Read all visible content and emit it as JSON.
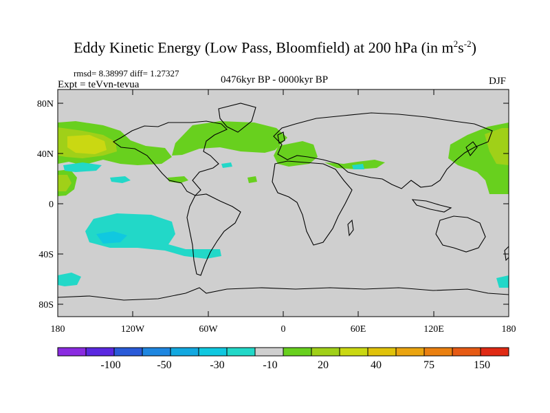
{
  "title": {
    "main": "Eddy Kinetic Energy (Low Pass, Bloomfield) at 200 hPa (in m",
    "sup1": "2",
    "mid": "s",
    "sup2": "-2",
    "end": ")"
  },
  "stats": "rmsd= 8.38997 diff= 1.27327",
  "experiment": "Expt = teVvn-tevua",
  "period": "0476kyr BP - 0000kyr BP",
  "season": "DJF",
  "axes": {
    "lat_ticks": [
      "80N",
      "40N",
      "0",
      "40S",
      "80S"
    ],
    "lon_ticks": [
      "180",
      "120W",
      "60W",
      "0",
      "60E",
      "120E",
      "180"
    ]
  },
  "colorbar": {
    "colors": [
      "#8a2be0",
      "#5a28e0",
      "#2a5ad8",
      "#1e86e0",
      "#12a8e0",
      "#10c8e0",
      "#22d8c8",
      "#cfcfcf",
      "#68d01e",
      "#a0d018",
      "#cad812",
      "#e0c20a",
      "#eaa410",
      "#ea8010",
      "#e65a14",
      "#e02a14"
    ],
    "labels": [
      "-100",
      "-50",
      "-30",
      "-10",
      "20",
      "40",
      "75",
      "150"
    ]
  },
  "legend_colors": {
    "ocean_land_zero": "#cfcfcf",
    "light_green": "#68d01e",
    "yellow_green": "#a0d018",
    "yellow": "#cad812",
    "gold": "#e0c20a",
    "cyan": "#22d8c8",
    "light_blue": "#10c8e0"
  }
}
